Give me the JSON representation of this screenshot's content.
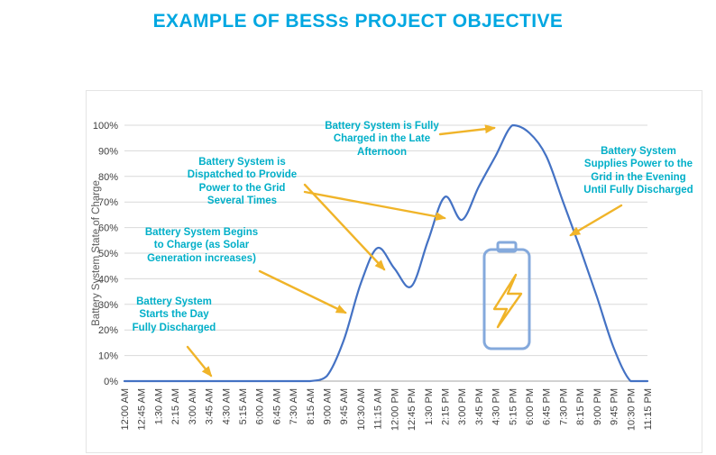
{
  "title": "EXAMPLE OF BESSs PROJECT OBJECTIVE",
  "colors": {
    "title": "#00A7E1",
    "annotation": "#00AFC8",
    "line": "#4472C4",
    "arrow": "#F0B429",
    "battery_outline": "#84A9DC",
    "grid": "#D9D9D9",
    "axis": "#A6A6A6"
  },
  "icons": {
    "battery_charging": "battery-charging-icon"
  },
  "chart_data": {
    "type": "line",
    "title": "",
    "xlabel": "",
    "ylabel": "Battery System State of Charge",
    "ylim": [
      0,
      100
    ],
    "y_ticks": [
      0,
      10,
      20,
      30,
      40,
      50,
      60,
      70,
      80,
      90,
      100
    ],
    "y_tick_format": "percent",
    "grid": true,
    "legend": "none",
    "categories": [
      "12:00 AM",
      "12:45 AM",
      "1:30 AM",
      "2:15 AM",
      "3:00 AM",
      "3:45 AM",
      "4:30 AM",
      "5:15 AM",
      "6:00 AM",
      "6:45 AM",
      "7:30 AM",
      "8:15 AM",
      "9:00 AM",
      "9:45 AM",
      "10:30 AM",
      "11:15 AM",
      "12:00 PM",
      "12:45 PM",
      "1:30 PM",
      "2:15 PM",
      "3:00 PM",
      "3:45 PM",
      "4:30 PM",
      "5:15 PM",
      "6:00 PM",
      "6:45 PM",
      "7:30 PM",
      "8:15 PM",
      "9:00 PM",
      "9:45 PM",
      "10:30 PM",
      "11:15 PM"
    ],
    "series": [
      {
        "name": "Battery System State of Charge",
        "color": "#4472C4",
        "values": [
          0,
          0,
          0,
          0,
          0,
          0,
          0,
          0,
          0,
          0,
          0,
          0,
          2,
          16,
          38,
          52,
          44,
          37,
          55,
          72,
          63,
          76,
          88,
          100,
          97,
          88,
          70,
          52,
          33,
          13,
          0,
          0
        ]
      }
    ]
  },
  "annotations": [
    {
      "text": "Battery System\nStarts the Day\nFully Discharged"
    },
    {
      "text": "Battery System Begins\nto Charge (as Solar\nGeneration increases)"
    },
    {
      "text": "Battery System is\nDispatched to Provide\nPower to the Grid\nSeveral Times"
    },
    {
      "text": "Battery System is Fully\nCharged in the Late\nAfternoon"
    },
    {
      "text": "Battery System\nSupplies Power to the\nGrid in the Evening\nUntil Fully Discharged"
    }
  ]
}
